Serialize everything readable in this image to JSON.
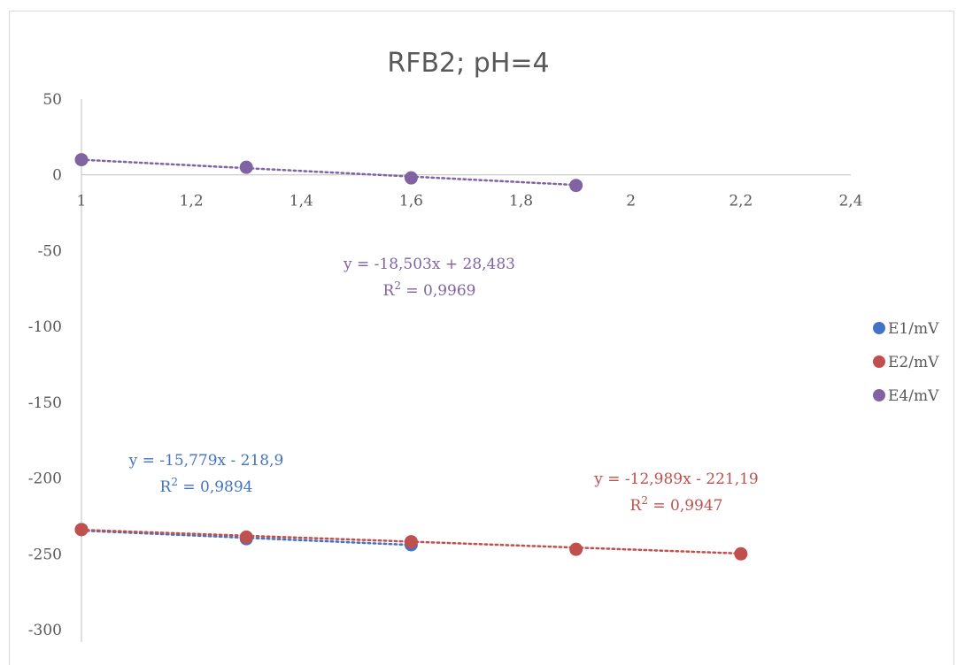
{
  "chart_data": {
    "type": "scatter",
    "title": "RFB2; pH=4",
    "xlabel": "",
    "ylabel": "",
    "xlim": [
      1,
      2.4
    ],
    "ylim": [
      -300,
      50
    ],
    "x_ticks": [
      "1",
      "1,2",
      "1,4",
      "1,6",
      "1,8",
      "2",
      "2,2",
      "2,4"
    ],
    "x_tick_values": [
      1,
      1.2,
      1.4,
      1.6,
      1.8,
      2,
      2.2,
      2.4
    ],
    "y_ticks": [
      "50",
      "0",
      "-50",
      "-100",
      "-150",
      "-200",
      "-250",
      "-300"
    ],
    "y_tick_values": [
      50,
      0,
      -50,
      -100,
      -150,
      -200,
      -250,
      -300
    ],
    "grid": false,
    "legend_position": "right",
    "series": [
      {
        "name": "E1/mV",
        "color": "#4472C4",
        "points": [
          [
            1.0,
            -234
          ],
          [
            1.3,
            -240
          ],
          [
            1.6,
            -244
          ]
        ],
        "trendline": {
          "slope": -15.779,
          "intercept": -218.9,
          "x_range": [
            1.0,
            1.6
          ],
          "equation": "y = -15,779x - 218,9",
          "r2_prefix": "R",
          "r2_exp": "2",
          "r2_value": " = 0,9894"
        }
      },
      {
        "name": "E2/mV",
        "color": "#C0504D",
        "points": [
          [
            1.0,
            -234
          ],
          [
            1.3,
            -239
          ],
          [
            1.6,
            -242
          ],
          [
            1.9,
            -247
          ],
          [
            2.2,
            -250
          ]
        ],
        "trendline": {
          "slope": -12.989,
          "intercept": -221.19,
          "x_range": [
            1.0,
            2.2
          ],
          "equation": "y = -12,989x - 221,19",
          "r2_prefix": "R",
          "r2_exp": "2",
          "r2_value": " = 0,9947"
        }
      },
      {
        "name": "E4/mV",
        "color": "#8064A2",
        "points": [
          [
            1.0,
            10
          ],
          [
            1.3,
            5
          ],
          [
            1.6,
            -2
          ],
          [
            1.9,
            -7
          ]
        ],
        "trendline": {
          "slope": -18.503,
          "intercept": 28.483,
          "x_range": [
            1.0,
            1.9
          ],
          "equation": "y = -18,503x + 28,483",
          "r2_prefix": "R",
          "r2_exp": "2",
          "r2_value": " = 0,9969"
        }
      }
    ]
  }
}
